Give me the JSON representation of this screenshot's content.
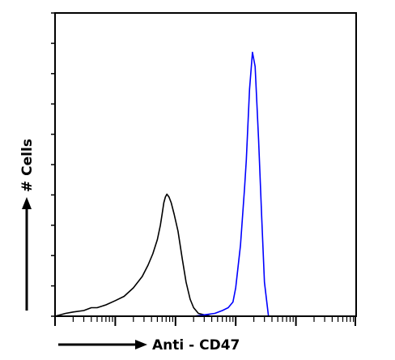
{
  "chart_data": {
    "type": "line",
    "title": "",
    "xlabel": "Anti - CD47",
    "ylabel": "# Cells",
    "x_scale": "log",
    "xlim": [
      1,
      100000
    ],
    "ylim": [
      0,
      100
    ],
    "grid": false,
    "legend": "none",
    "series": [
      {
        "color": "#000000",
        "x": [
          1,
          1.5,
          2,
          3,
          4,
          5,
          7,
          10,
          14,
          20,
          28,
          35,
          42,
          50,
          56,
          60,
          64,
          68,
          72,
          78,
          85,
          95,
          110,
          130,
          150,
          175,
          200,
          240,
          300,
          400,
          600
        ],
        "y": [
          0,
          1,
          1.5,
          2,
          3,
          3,
          4,
          5.5,
          7,
          10,
          14,
          18,
          22,
          27,
          32,
          36,
          40,
          42,
          43,
          42,
          40,
          36,
          30,
          20,
          12,
          6,
          3,
          1,
          0.5,
          0,
          0
        ]
      },
      {
        "color": "#0000ff",
        "x": [
          150,
          200,
          300,
          450,
          600,
          750,
          900,
          1000,
          1200,
          1400,
          1500,
          1700,
          1900,
          2100,
          2400,
          2700,
          3000,
          3500
        ],
        "y": [
          0,
          0,
          0.5,
          1,
          2,
          3,
          5,
          10,
          25,
          45,
          55,
          80,
          93,
          88,
          62,
          35,
          12,
          0
        ]
      }
    ]
  }
}
